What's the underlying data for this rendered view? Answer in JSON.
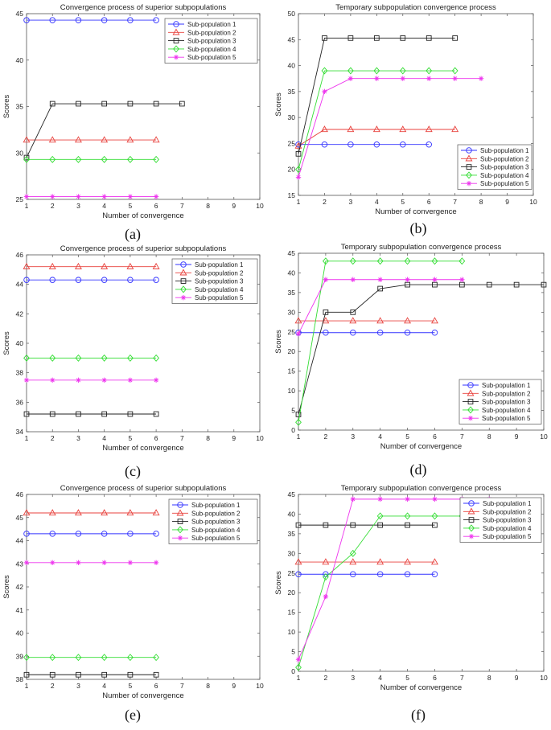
{
  "colors": {
    "series": [
      "#3333ff",
      "#e8413c",
      "#222222",
      "#33dd33",
      "#ee33ee"
    ],
    "markers": [
      "circle",
      "triangle",
      "square",
      "diamond",
      "star"
    ]
  },
  "chart_data": [
    {
      "type": "line",
      "caption": "(a)",
      "title": "Convergence process of superior subpopulations",
      "xlabel": "Number of convergence",
      "ylabel": "Scores",
      "xlim": [
        1,
        10
      ],
      "ylim": [
        25,
        45
      ],
      "xticks": [
        1,
        2,
        3,
        4,
        5,
        6,
        7,
        8,
        9,
        10
      ],
      "yticks": [
        25,
        30,
        35,
        40,
        45
      ],
      "legend_position": "top-right",
      "series": [
        {
          "name": "Sub-population 1",
          "x": [
            1,
            2,
            3,
            4,
            5,
            6
          ],
          "y": [
            44.3,
            44.3,
            44.3,
            44.3,
            44.3,
            44.3
          ]
        },
        {
          "name": "Sub-population 2",
          "x": [
            1,
            2,
            3,
            4,
            5,
            6
          ],
          "y": [
            31.4,
            31.4,
            31.4,
            31.4,
            31.4,
            31.4
          ]
        },
        {
          "name": "Sub-population 3",
          "x": [
            1,
            2,
            3,
            4,
            5,
            6,
            7
          ],
          "y": [
            29.5,
            35.3,
            35.3,
            35.3,
            35.3,
            35.3,
            35.3
          ]
        },
        {
          "name": "Sub-population 4",
          "x": [
            1,
            2,
            3,
            4,
            5,
            6
          ],
          "y": [
            29.3,
            29.3,
            29.3,
            29.3,
            29.3,
            29.3
          ]
        },
        {
          "name": "Sub-population 5",
          "x": [
            1,
            2,
            3,
            4,
            5,
            6
          ],
          "y": [
            25.3,
            25.3,
            25.3,
            25.3,
            25.3,
            25.3
          ]
        }
      ]
    },
    {
      "type": "line",
      "caption": "(b)",
      "title": "Temporary subpopulation convergence process",
      "xlabel": "Number of convergence",
      "ylabel": "Scores",
      "xlim": [
        1,
        10
      ],
      "ylim": [
        15,
        50
      ],
      "xticks": [
        1,
        2,
        3,
        4,
        5,
        6,
        7,
        8,
        9,
        10
      ],
      "yticks": [
        15,
        20,
        25,
        30,
        35,
        40,
        45,
        50
      ],
      "legend_position": "bottom-right",
      "series": [
        {
          "name": "Sub-population 1",
          "x": [
            1,
            2,
            3,
            4,
            5,
            6
          ],
          "y": [
            24.8,
            24.8,
            24.8,
            24.8,
            24.8,
            24.8
          ]
        },
        {
          "name": "Sub-population 2",
          "x": [
            1,
            2,
            3,
            4,
            5,
            6,
            7
          ],
          "y": [
            24.5,
            27.7,
            27.7,
            27.7,
            27.7,
            27.7,
            27.7
          ]
        },
        {
          "name": "Sub-population 3",
          "x": [
            1,
            2,
            3,
            4,
            5,
            6,
            7
          ],
          "y": [
            23.0,
            45.3,
            45.3,
            45.3,
            45.3,
            45.3,
            45.3
          ]
        },
        {
          "name": "Sub-population 4",
          "x": [
            1,
            2,
            3,
            4,
            5,
            6,
            7
          ],
          "y": [
            20.0,
            39.0,
            39.0,
            39.0,
            39.0,
            39.0,
            39.0
          ]
        },
        {
          "name": "Sub-population 5",
          "x": [
            1,
            2,
            3,
            4,
            5,
            6,
            7,
            8
          ],
          "y": [
            18.5,
            35.0,
            37.5,
            37.5,
            37.5,
            37.5,
            37.5,
            37.5
          ]
        }
      ]
    },
    {
      "type": "line",
      "caption": "(c)",
      "title": "Convergence process of superior subpopulations",
      "xlabel": "Number of convergence",
      "ylabel": "Scores",
      "xlim": [
        1,
        10
      ],
      "ylim": [
        34,
        46
      ],
      "xticks": [
        1,
        2,
        3,
        4,
        5,
        6,
        7,
        8,
        9,
        10
      ],
      "yticks": [
        34,
        36,
        38,
        40,
        42,
        44,
        46
      ],
      "legend_position": "top-right",
      "series": [
        {
          "name": "Sub-population 1",
          "x": [
            1,
            2,
            3,
            4,
            5,
            6
          ],
          "y": [
            44.3,
            44.3,
            44.3,
            44.3,
            44.3,
            44.3
          ]
        },
        {
          "name": "Sub-population 2",
          "x": [
            1,
            2,
            3,
            4,
            5,
            6
          ],
          "y": [
            45.2,
            45.2,
            45.2,
            45.2,
            45.2,
            45.2
          ]
        },
        {
          "name": "Sub-population 3",
          "x": [
            1,
            2,
            3,
            4,
            5,
            6
          ],
          "y": [
            35.2,
            35.2,
            35.2,
            35.2,
            35.2,
            35.2
          ]
        },
        {
          "name": "Sub-population 4",
          "x": [
            1,
            2,
            3,
            4,
            5,
            6
          ],
          "y": [
            39.0,
            39.0,
            39.0,
            39.0,
            39.0,
            39.0
          ]
        },
        {
          "name": "Sub-population 5",
          "x": [
            1,
            2,
            3,
            4,
            5,
            6
          ],
          "y": [
            37.5,
            37.5,
            37.5,
            37.5,
            37.5,
            37.5
          ]
        }
      ]
    },
    {
      "type": "line",
      "caption": "(d)",
      "title": "Temporary subpopulation convergence process",
      "xlabel": "Number of convergence",
      "ylabel": "Scores",
      "xlim": [
        1,
        10
      ],
      "ylim": [
        0,
        45
      ],
      "xticks": [
        1,
        2,
        3,
        4,
        5,
        6,
        7,
        8,
        9,
        10
      ],
      "yticks": [
        0,
        5,
        10,
        15,
        20,
        25,
        30,
        35,
        40,
        45
      ],
      "legend_position": "bottom-right",
      "series": [
        {
          "name": "Sub-population 1",
          "x": [
            1,
            2,
            3,
            4,
            5,
            6
          ],
          "y": [
            24.8,
            24.8,
            24.8,
            24.8,
            24.8,
            24.8
          ]
        },
        {
          "name": "Sub-population 2",
          "x": [
            1,
            2,
            3,
            4,
            5,
            6
          ],
          "y": [
            27.8,
            27.8,
            27.8,
            27.8,
            27.8,
            27.8
          ]
        },
        {
          "name": "Sub-population 3",
          "x": [
            1,
            2,
            3,
            4,
            5,
            6,
            7,
            8,
            9,
            10
          ],
          "y": [
            4.0,
            30.0,
            30.0,
            36.0,
            37.0,
            37.0,
            37.0,
            37.0,
            37.0,
            37.0
          ]
        },
        {
          "name": "Sub-population 4",
          "x": [
            1,
            2,
            3,
            4,
            5,
            6,
            7
          ],
          "y": [
            2.0,
            43.0,
            43.0,
            43.0,
            43.0,
            43.0,
            43.0
          ]
        },
        {
          "name": "Sub-population 5",
          "x": [
            1,
            2,
            3,
            4,
            5,
            6,
            7
          ],
          "y": [
            24.5,
            38.3,
            38.3,
            38.3,
            38.3,
            38.3,
            38.3
          ]
        }
      ]
    },
    {
      "type": "line",
      "caption": "(e)",
      "title": "Convergence process of superior subpopulations",
      "xlabel": "Number of convergence",
      "ylabel": "Scores",
      "xlim": [
        1,
        10
      ],
      "ylim": [
        38,
        46
      ],
      "xticks": [
        1,
        2,
        3,
        4,
        5,
        6,
        7,
        8,
        9,
        10
      ],
      "yticks": [
        38,
        39,
        40,
        41,
        42,
        43,
        44,
        45,
        46
      ],
      "legend_position": "top-right",
      "series": [
        {
          "name": "Sub-population 1",
          "x": [
            1,
            2,
            3,
            4,
            5,
            6
          ],
          "y": [
            44.3,
            44.3,
            44.3,
            44.3,
            44.3,
            44.3
          ]
        },
        {
          "name": "Sub-population 2",
          "x": [
            1,
            2,
            3,
            4,
            5,
            6
          ],
          "y": [
            45.2,
            45.2,
            45.2,
            45.2,
            45.2,
            45.2
          ]
        },
        {
          "name": "Sub-population 3",
          "x": [
            1,
            2,
            3,
            4,
            5,
            6
          ],
          "y": [
            38.2,
            38.2,
            38.2,
            38.2,
            38.2,
            38.2
          ]
        },
        {
          "name": "Sub-population 4",
          "x": [
            1,
            2,
            3,
            4,
            5,
            6
          ],
          "y": [
            38.95,
            38.95,
            38.95,
            38.95,
            38.95,
            38.95
          ]
        },
        {
          "name": "Sub-population 5",
          "x": [
            1,
            2,
            3,
            4,
            5,
            6
          ],
          "y": [
            43.05,
            43.05,
            43.05,
            43.05,
            43.05,
            43.05
          ]
        }
      ]
    },
    {
      "type": "line",
      "caption": "(f)",
      "title": "Temporary subpopulation convergence process",
      "xlabel": "Number of convergence",
      "ylabel": "Scores",
      "xlim": [
        1,
        10
      ],
      "ylim": [
        0,
        45
      ],
      "xticks": [
        1,
        2,
        3,
        4,
        5,
        6,
        7,
        8,
        9,
        10
      ],
      "yticks": [
        0,
        5,
        10,
        15,
        20,
        25,
        30,
        35,
        40,
        45
      ],
      "legend_position": "top-right",
      "series": [
        {
          "name": "Sub-population 1",
          "x": [
            1,
            2,
            3,
            4,
            5,
            6
          ],
          "y": [
            24.7,
            24.7,
            24.7,
            24.7,
            24.7,
            24.7
          ]
        },
        {
          "name": "Sub-population 2",
          "x": [
            1,
            2,
            3,
            4,
            5,
            6
          ],
          "y": [
            27.8,
            27.8,
            27.8,
            27.8,
            27.8,
            27.8
          ]
        },
        {
          "name": "Sub-population 3",
          "x": [
            1,
            2,
            3,
            4,
            5,
            6
          ],
          "y": [
            37.2,
            37.2,
            37.2,
            37.2,
            37.2,
            37.2
          ]
        },
        {
          "name": "Sub-population 4",
          "x": [
            1,
            2,
            3,
            4,
            5,
            6,
            7
          ],
          "y": [
            1.0,
            24.0,
            30.0,
            39.5,
            39.5,
            39.5,
            39.5
          ]
        },
        {
          "name": "Sub-population 5",
          "x": [
            1,
            2,
            3,
            4,
            5,
            6,
            7,
            8
          ],
          "y": [
            3.0,
            19.0,
            43.8,
            43.8,
            43.8,
            43.8,
            43.8,
            43.8
          ]
        }
      ]
    }
  ]
}
